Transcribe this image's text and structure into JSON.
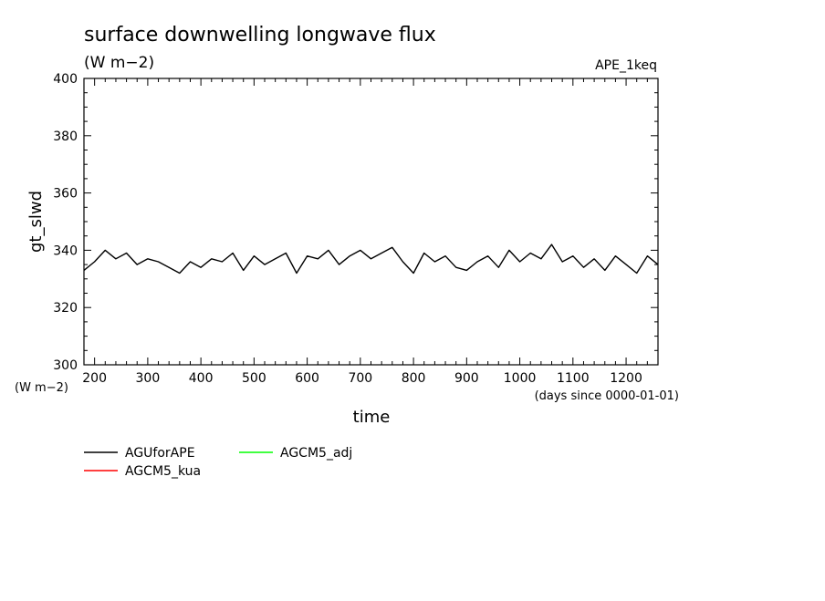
{
  "chart_data": {
    "type": "line",
    "title": "surface downwelling longwave flux",
    "subtitle": "(W m−2)",
    "tag": "APE_1keq",
    "xlabel": "time",
    "xunits": "(days since 0000-01-01)",
    "ylabel": "gt_slwd",
    "yunits": "(W m−2)",
    "xlim": [
      180,
      1260
    ],
    "ylim": [
      300,
      400
    ],
    "xticks": [
      200,
      300,
      400,
      500,
      600,
      700,
      800,
      900,
      1000,
      1100,
      1200
    ],
    "xtick_labels": [
      "200",
      "300",
      "400",
      "500",
      "600",
      "700",
      "800",
      "900",
      "1000",
      "1100",
      "1200"
    ],
    "yticks": [
      300,
      320,
      340,
      360,
      380,
      400
    ],
    "ytick_labels": [
      "300",
      "320",
      "340",
      "360",
      "380",
      "400"
    ],
    "grid": false,
    "legend_position": "bottom-left",
    "series": [
      {
        "name": "AGUforAPE",
        "color": "#000000",
        "x": [
          180,
          200,
          220,
          240,
          260,
          280,
          300,
          320,
          340,
          360,
          380,
          400,
          420,
          440,
          460,
          480,
          500,
          520,
          540,
          560,
          580,
          600,
          620,
          640,
          660,
          680,
          700,
          720,
          740,
          760,
          780,
          800,
          820,
          840,
          860,
          880,
          900,
          920,
          940,
          960,
          980,
          1000,
          1020,
          1040,
          1060,
          1080,
          1100,
          1120,
          1140,
          1160,
          1180,
          1200,
          1220,
          1240,
          1260
        ],
        "y": [
          333,
          336,
          340,
          337,
          339,
          335,
          337,
          336,
          334,
          332,
          336,
          334,
          337,
          336,
          339,
          333,
          338,
          335,
          337,
          339,
          332,
          338,
          337,
          340,
          335,
          338,
          340,
          337,
          339,
          341,
          336,
          332,
          339,
          336,
          338,
          334,
          333,
          336,
          338,
          334,
          340,
          336,
          339,
          337,
          342,
          336,
          338,
          334,
          337,
          333,
          338,
          335,
          332,
          338,
          335
        ]
      },
      {
        "name": "AGCM5_adj",
        "color": "#00ff00",
        "x": [],
        "y": []
      },
      {
        "name": "AGCM5_kua",
        "color": "#ff0000",
        "x": [],
        "y": []
      }
    ]
  }
}
